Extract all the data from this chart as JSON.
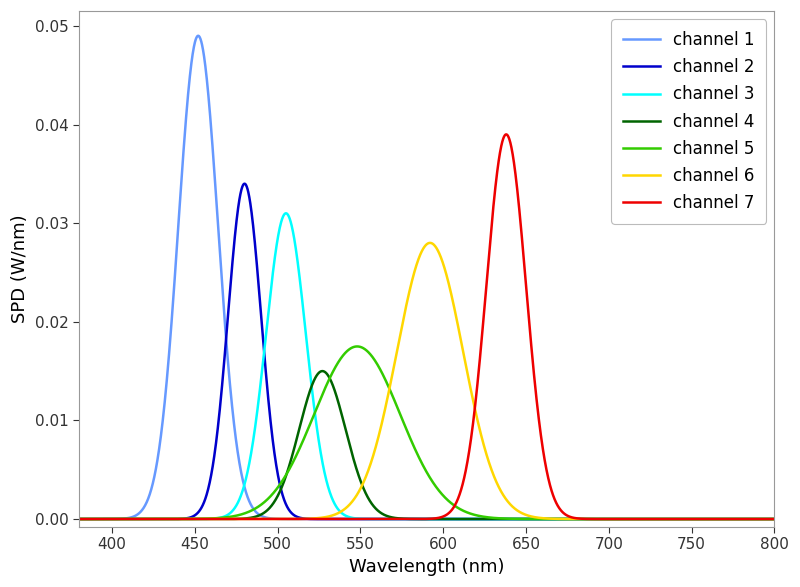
{
  "channels": [
    {
      "label": "channel 1",
      "color": "#6699FF",
      "peak": 452,
      "sigma": 12,
      "amplitude": 0.049
    },
    {
      "label": "channel 2",
      "color": "#0000CC",
      "peak": 480,
      "sigma": 10,
      "amplitude": 0.034
    },
    {
      "label": "channel 3",
      "color": "#00FFFF",
      "peak": 505,
      "sigma": 12,
      "amplitude": 0.031
    },
    {
      "label": "channel 4",
      "color": "#006400",
      "peak": 527,
      "sigma": 14,
      "amplitude": 0.015
    },
    {
      "label": "channel 5",
      "color": "#33CC00",
      "peak": 548,
      "sigma": 26,
      "amplitude": 0.0175
    },
    {
      "label": "channel 6",
      "color": "#FFD700",
      "peak": 592,
      "sigma": 20,
      "amplitude": 0.028
    },
    {
      "label": "channel 7",
      "color": "#EE0000",
      "peak": 638,
      "sigma": 12,
      "amplitude": 0.039
    }
  ],
  "xlabel": "Wavelength (nm)",
  "ylabel": "SPD (W/nm)",
  "xlim": [
    380,
    800
  ],
  "ylim": [
    -0.0008,
    0.0515
  ],
  "xticks": [
    400,
    450,
    500,
    550,
    600,
    650,
    700,
    750,
    800
  ],
  "yticks": [
    0.0,
    0.01,
    0.02,
    0.03,
    0.04,
    0.05
  ],
  "background_color": "#ffffff",
  "legend_loc": "upper right",
  "figsize": [
    8.0,
    5.87
  ],
  "dpi": 100
}
